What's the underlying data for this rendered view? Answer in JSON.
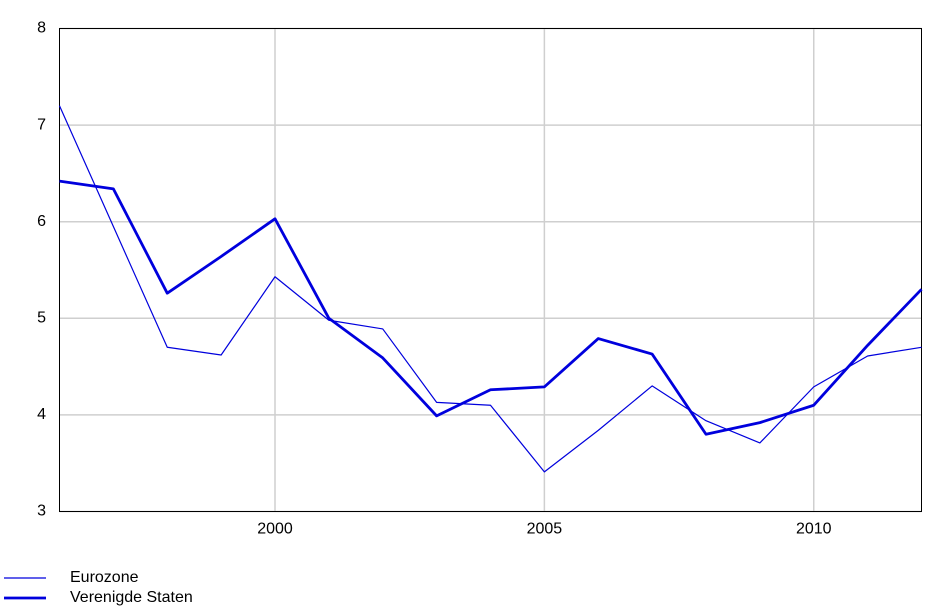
{
  "chart_data": {
    "type": "line",
    "x": [
      1996,
      1997,
      1998,
      1999,
      2000,
      2001,
      2002,
      2003,
      2004,
      2005,
      2006,
      2007,
      2008,
      2009,
      2010,
      2011,
      2012
    ],
    "series": [
      {
        "name": "Eurozone",
        "color": "#0000dd",
        "values": [
          7.2,
          5.95,
          4.7,
          4.62,
          5.43,
          4.98,
          4.89,
          4.13,
          4.1,
          3.41,
          3.84,
          4.3,
          3.94,
          3.71,
          4.29,
          4.61,
          4.7
        ]
      },
      {
        "name": "Verenigde Staten",
        "color": "#0000dd",
        "values": [
          6.42,
          6.34,
          5.26,
          5.64,
          6.03,
          5.0,
          4.59,
          3.99,
          4.26,
          4.29,
          4.79,
          4.63,
          3.8,
          3.92,
          4.1,
          4.72,
          5.3
        ]
      }
    ],
    "xlim": [
      1996,
      2012
    ],
    "xticks": [
      2000,
      2005,
      2010
    ],
    "ylim": [
      3,
      8
    ],
    "yticks": [
      3,
      4,
      5,
      6,
      7,
      8
    ],
    "grid": true,
    "legend": "bottom-left"
  }
}
